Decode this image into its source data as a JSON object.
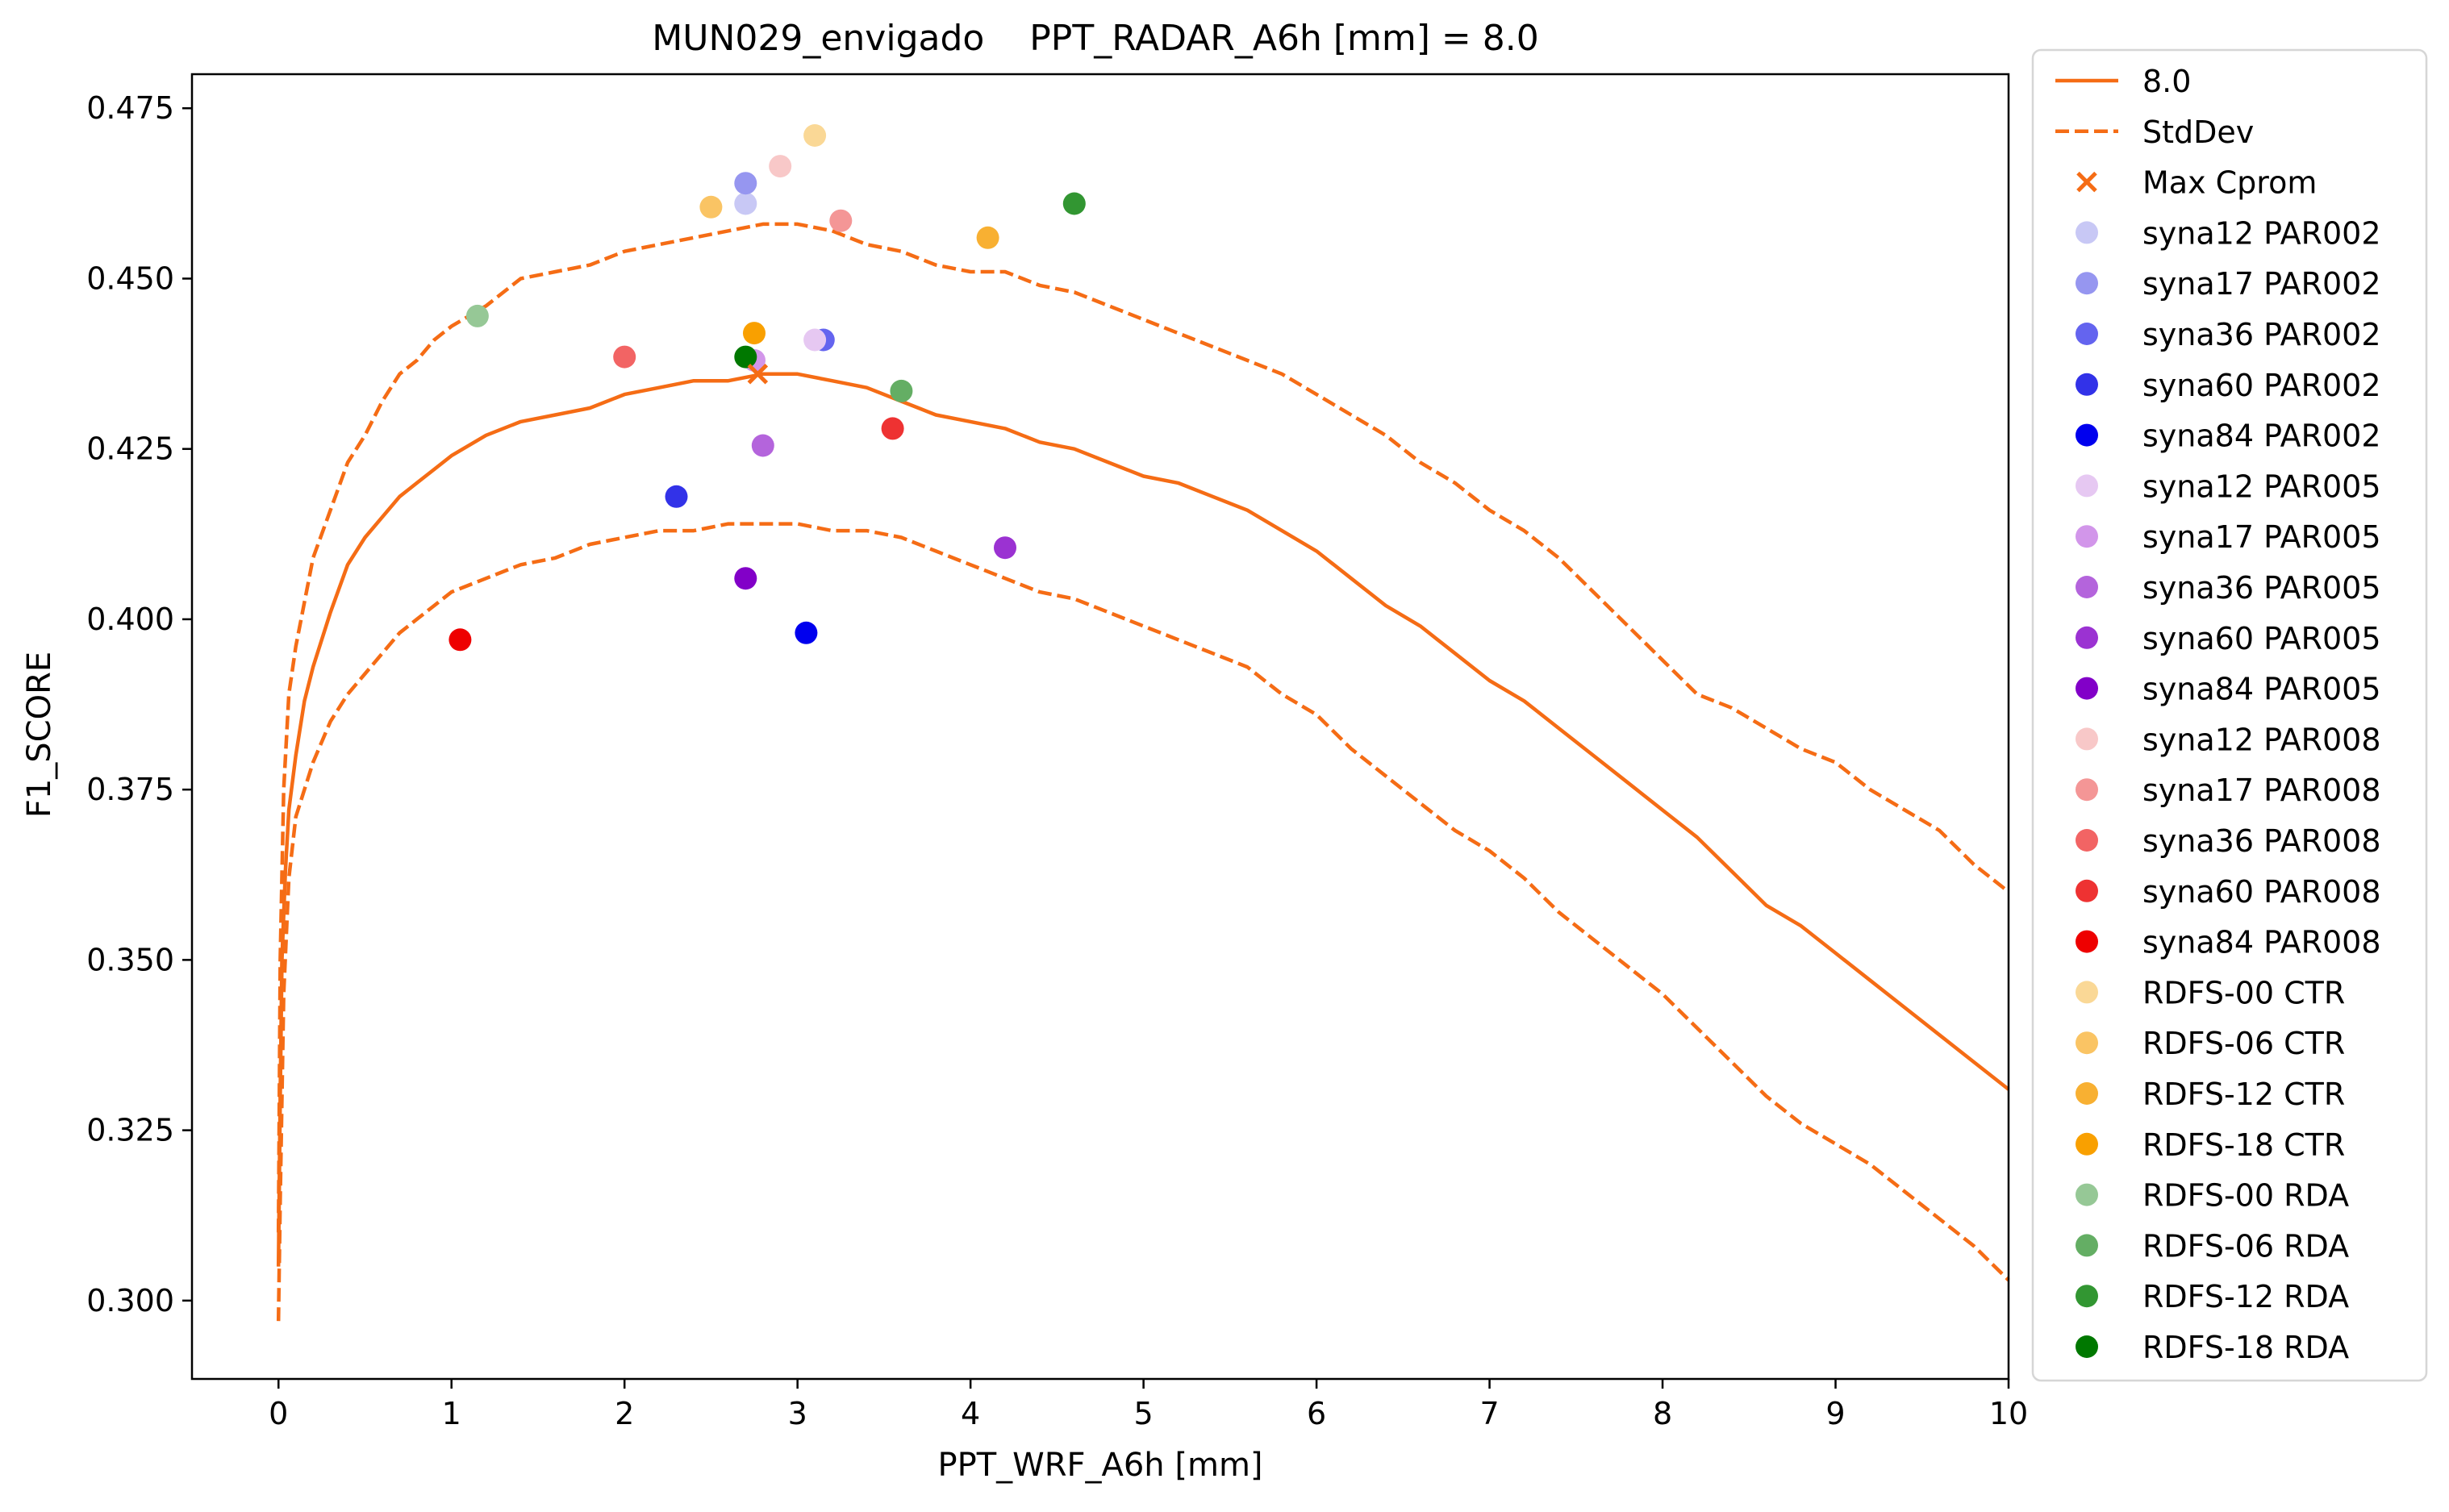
{
  "chart_data": {
    "type": "line",
    "title": "MUN029_envigado    PPT_RADAR_A6h [mm] = 8.0",
    "xlabel": "PPT_WRF_A6h [mm]",
    "ylabel": "F1_SCORE",
    "xlim": [
      -0.5,
      10
    ],
    "ylim": [
      0.2885,
      0.48
    ],
    "xticks": [
      0,
      1,
      2,
      3,
      4,
      5,
      6,
      7,
      8,
      9,
      10
    ],
    "yticks": [
      0.3,
      0.325,
      0.35,
      0.375,
      0.4,
      0.425,
      0.45,
      0.475
    ],
    "ytick_labels": [
      "0.300",
      "0.325",
      "0.350",
      "0.375",
      "0.400",
      "0.425",
      "0.450",
      "0.475"
    ],
    "grid": false,
    "legend_position": "outside-right",
    "series": [
      {
        "name": "8.0",
        "style": "solid",
        "color": "#f56c15",
        "points": [
          [
            0,
            0.305
          ],
          [
            0.01,
            0.33
          ],
          [
            0.02,
            0.35
          ],
          [
            0.04,
            0.363
          ],
          [
            0.06,
            0.372
          ],
          [
            0.1,
            0.38
          ],
          [
            0.15,
            0.388
          ],
          [
            0.2,
            0.393
          ],
          [
            0.3,
            0.401
          ],
          [
            0.4,
            0.408
          ],
          [
            0.5,
            0.412
          ],
          [
            0.6,
            0.415
          ],
          [
            0.7,
            0.418
          ],
          [
            0.8,
            0.42
          ],
          [
            0.9,
            0.422
          ],
          [
            1.0,
            0.424
          ],
          [
            1.2,
            0.427
          ],
          [
            1.4,
            0.429
          ],
          [
            1.6,
            0.43
          ],
          [
            1.8,
            0.431
          ],
          [
            2.0,
            0.433
          ],
          [
            2.2,
            0.434
          ],
          [
            2.4,
            0.435
          ],
          [
            2.6,
            0.435
          ],
          [
            2.8,
            0.436
          ],
          [
            3.0,
            0.436
          ],
          [
            3.2,
            0.435
          ],
          [
            3.4,
            0.434
          ],
          [
            3.6,
            0.432
          ],
          [
            3.8,
            0.43
          ],
          [
            4.0,
            0.429
          ],
          [
            4.2,
            0.428
          ],
          [
            4.4,
            0.426
          ],
          [
            4.6,
            0.425
          ],
          [
            4.8,
            0.423
          ],
          [
            5.0,
            0.421
          ],
          [
            5.2,
            0.42
          ],
          [
            5.4,
            0.418
          ],
          [
            5.6,
            0.416
          ],
          [
            5.8,
            0.413
          ],
          [
            6.0,
            0.41
          ],
          [
            6.2,
            0.406
          ],
          [
            6.4,
            0.402
          ],
          [
            6.6,
            0.399
          ],
          [
            6.8,
            0.395
          ],
          [
            7.0,
            0.391
          ],
          [
            7.2,
            0.388
          ],
          [
            7.4,
            0.384
          ],
          [
            7.6,
            0.38
          ],
          [
            7.8,
            0.376
          ],
          [
            8.0,
            0.372
          ],
          [
            8.2,
            0.368
          ],
          [
            8.4,
            0.363
          ],
          [
            8.6,
            0.358
          ],
          [
            8.8,
            0.355
          ],
          [
            9.0,
            0.351
          ],
          [
            9.2,
            0.347
          ],
          [
            9.4,
            0.343
          ],
          [
            9.6,
            0.339
          ],
          [
            9.8,
            0.335
          ],
          [
            10.0,
            0.331
          ]
        ]
      },
      {
        "name": "StdDev",
        "style": "dashed",
        "color": "#f56c15",
        "points": [
          [
            0,
            0.297
          ],
          [
            0.01,
            0.315
          ],
          [
            0.03,
            0.345
          ],
          [
            0.06,
            0.362
          ],
          [
            0.1,
            0.371
          ],
          [
            0.2,
            0.379
          ],
          [
            0.3,
            0.385
          ],
          [
            0.4,
            0.389
          ],
          [
            0.5,
            0.392
          ],
          [
            0.6,
            0.395
          ],
          [
            0.7,
            0.398
          ],
          [
            0.8,
            0.4
          ],
          [
            0.9,
            0.402
          ],
          [
            1.0,
            0.404
          ],
          [
            1.2,
            0.406
          ],
          [
            1.4,
            0.408
          ],
          [
            1.6,
            0.409
          ],
          [
            1.8,
            0.411
          ],
          [
            2.0,
            0.412
          ],
          [
            2.2,
            0.413
          ],
          [
            2.4,
            0.413
          ],
          [
            2.6,
            0.414
          ],
          [
            2.8,
            0.414
          ],
          [
            3.0,
            0.414
          ],
          [
            3.2,
            0.413
          ],
          [
            3.4,
            0.413
          ],
          [
            3.6,
            0.412
          ],
          [
            3.8,
            0.41
          ],
          [
            4.0,
            0.408
          ],
          [
            4.2,
            0.406
          ],
          [
            4.4,
            0.404
          ],
          [
            4.6,
            0.403
          ],
          [
            4.8,
            0.401
          ],
          [
            5.0,
            0.399
          ],
          [
            5.2,
            0.397
          ],
          [
            5.4,
            0.395
          ],
          [
            5.6,
            0.393
          ],
          [
            5.8,
            0.389
          ],
          [
            6.0,
            0.386
          ],
          [
            6.2,
            0.381
          ],
          [
            6.4,
            0.377
          ],
          [
            6.6,
            0.373
          ],
          [
            6.8,
            0.369
          ],
          [
            7.0,
            0.366
          ],
          [
            7.2,
            0.362
          ],
          [
            7.4,
            0.357
          ],
          [
            7.6,
            0.353
          ],
          [
            7.8,
            0.349
          ],
          [
            8.0,
            0.345
          ],
          [
            8.2,
            0.34
          ],
          [
            8.4,
            0.335
          ],
          [
            8.6,
            0.33
          ],
          [
            8.8,
            0.326
          ],
          [
            9.0,
            0.323
          ],
          [
            9.2,
            0.32
          ],
          [
            9.4,
            0.316
          ],
          [
            9.6,
            0.312
          ],
          [
            9.8,
            0.308
          ],
          [
            10.0,
            0.303
          ]
        ]
      },
      {
        "name": "",
        "style": "dashed",
        "color": "#f56c15",
        "points": [
          [
            0,
            0.31
          ],
          [
            0.01,
            0.35
          ],
          [
            0.03,
            0.375
          ],
          [
            0.06,
            0.389
          ],
          [
            0.1,
            0.396
          ],
          [
            0.2,
            0.409
          ],
          [
            0.3,
            0.416
          ],
          [
            0.4,
            0.423
          ],
          [
            0.5,
            0.427
          ],
          [
            0.6,
            0.432
          ],
          [
            0.7,
            0.436
          ],
          [
            0.8,
            0.438
          ],
          [
            0.9,
            0.441
          ],
          [
            1.0,
            0.443
          ],
          [
            1.2,
            0.446
          ],
          [
            1.4,
            0.45
          ],
          [
            1.6,
            0.451
          ],
          [
            1.8,
            0.452
          ],
          [
            2.0,
            0.454
          ],
          [
            2.2,
            0.455
          ],
          [
            2.4,
            0.456
          ],
          [
            2.6,
            0.457
          ],
          [
            2.8,
            0.458
          ],
          [
            3.0,
            0.458
          ],
          [
            3.2,
            0.457
          ],
          [
            3.4,
            0.455
          ],
          [
            3.6,
            0.454
          ],
          [
            3.8,
            0.452
          ],
          [
            4.0,
            0.451
          ],
          [
            4.2,
            0.451
          ],
          [
            4.4,
            0.449
          ],
          [
            4.6,
            0.448
          ],
          [
            4.8,
            0.446
          ],
          [
            5.0,
            0.444
          ],
          [
            5.2,
            0.442
          ],
          [
            5.4,
            0.44
          ],
          [
            5.6,
            0.438
          ],
          [
            5.8,
            0.436
          ],
          [
            6.0,
            0.433
          ],
          [
            6.2,
            0.43
          ],
          [
            6.4,
            0.427
          ],
          [
            6.6,
            0.423
          ],
          [
            6.8,
            0.42
          ],
          [
            7.0,
            0.416
          ],
          [
            7.2,
            0.413
          ],
          [
            7.4,
            0.409
          ],
          [
            7.6,
            0.404
          ],
          [
            7.8,
            0.399
          ],
          [
            8.0,
            0.394
          ],
          [
            8.2,
            0.389
          ],
          [
            8.4,
            0.387
          ],
          [
            8.6,
            0.384
          ],
          [
            8.8,
            0.381
          ],
          [
            9.0,
            0.379
          ],
          [
            9.2,
            0.375
          ],
          [
            9.4,
            0.372
          ],
          [
            9.6,
            0.369
          ],
          [
            9.8,
            0.364
          ],
          [
            10.0,
            0.36
          ]
        ]
      }
    ],
    "max_marker": {
      "name": "Max Cprom",
      "marker": "x",
      "color": "#f56c15",
      "x": 2.77,
      "y": 0.436
    },
    "scatter": [
      {
        "name": "syna12 PAR002",
        "color": "#c8c8f5",
        "x": 2.7,
        "y": 0.461
      },
      {
        "name": "syna17 PAR002",
        "color": "#9696f0",
        "x": 2.7,
        "y": 0.464
      },
      {
        "name": "syna36 PAR002",
        "color": "#6464ef",
        "x": 3.15,
        "y": 0.441
      },
      {
        "name": "syna60 PAR002",
        "color": "#3232e8",
        "x": 2.3,
        "y": 0.418
      },
      {
        "name": "syna84 PAR002",
        "color": "#0000ee",
        "x": 3.05,
        "y": 0.398
      },
      {
        "name": "syna12 PAR005",
        "color": "#e6c8f2",
        "x": 3.1,
        "y": 0.441
      },
      {
        "name": "syna17 PAR005",
        "color": "#d296ea",
        "x": 2.75,
        "y": 0.438
      },
      {
        "name": "syna36 PAR005",
        "color": "#b464dc",
        "x": 2.8,
        "y": 0.4255
      },
      {
        "name": "syna60 PAR005",
        "color": "#9b32d2",
        "x": 4.2,
        "y": 0.4105
      },
      {
        "name": "syna84 PAR005",
        "color": "#8200c8",
        "x": 2.7,
        "y": 0.406
      },
      {
        "name": "syna12 PAR008",
        "color": "#f8c8c8",
        "x": 2.9,
        "y": 0.4665
      },
      {
        "name": "syna17 PAR008",
        "color": "#f49696",
        "x": 3.25,
        "y": 0.4585
      },
      {
        "name": "syna36 PAR008",
        "color": "#f26464",
        "x": 2.0,
        "y": 0.4385
      },
      {
        "name": "syna60 PAR008",
        "color": "#ee3232",
        "x": 3.55,
        "y": 0.428
      },
      {
        "name": "syna84 PAR008",
        "color": "#ee0000",
        "x": 1.05,
        "y": 0.397
      },
      {
        "name": "RDFS-00 CTR",
        "color": "#fad896",
        "x": 3.1,
        "y": 0.471
      },
      {
        "name": "RDFS-06 CTR",
        "color": "#fac464",
        "x": 2.5,
        "y": 0.4605
      },
      {
        "name": "RDFS-12 CTR",
        "color": "#f8b032",
        "x": 4.1,
        "y": 0.456
      },
      {
        "name": "RDFS-18 CTR",
        "color": "#f9a000",
        "x": 2.75,
        "y": 0.442
      },
      {
        "name": "RDFS-00 RDA",
        "color": "#96c896",
        "x": 1.15,
        "y": 0.4445
      },
      {
        "name": "RDFS-06 RDA",
        "color": "#64ae64",
        "x": 3.6,
        "y": 0.4335
      },
      {
        "name": "RDFS-12 RDA",
        "color": "#329632",
        "x": 4.6,
        "y": 0.461
      },
      {
        "name": "RDFS-18 RDA",
        "color": "#007800",
        "x": 2.7,
        "y": 0.4385
      }
    ]
  }
}
